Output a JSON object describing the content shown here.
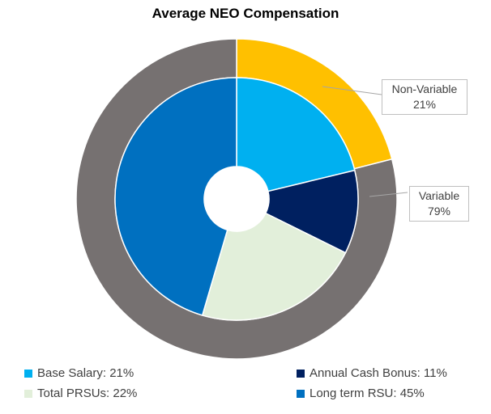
{
  "chart_data": {
    "type": "pie",
    "title": "Average NEO Compensation",
    "rings": [
      {
        "name": "outer",
        "slices": [
          {
            "label": "Non-Variable",
            "value": 21,
            "color": "#ffc000",
            "callout": "21%"
          },
          {
            "label": "Variable",
            "value": 79,
            "color": "#767171",
            "callout": "79%"
          }
        ]
      },
      {
        "name": "inner",
        "slices": [
          {
            "label": "Base Salary",
            "value": 21,
            "color": "#00b0f0",
            "legend": "Base Salary: 21%"
          },
          {
            "label": "Annual Cash Bonus",
            "value": 11,
            "color": "#002060",
            "legend": "Annual Cash Bonus: 11%"
          },
          {
            "label": "Total PRSUs",
            "value": 22,
            "color": "#e2efda",
            "legend": "Total PRSUs: 22%"
          },
          {
            "label": "Long term RSU",
            "value": 45,
            "color": "#0070c0",
            "legend": "Long term RSU: 45%"
          }
        ]
      }
    ],
    "legend_position": "bottom"
  }
}
